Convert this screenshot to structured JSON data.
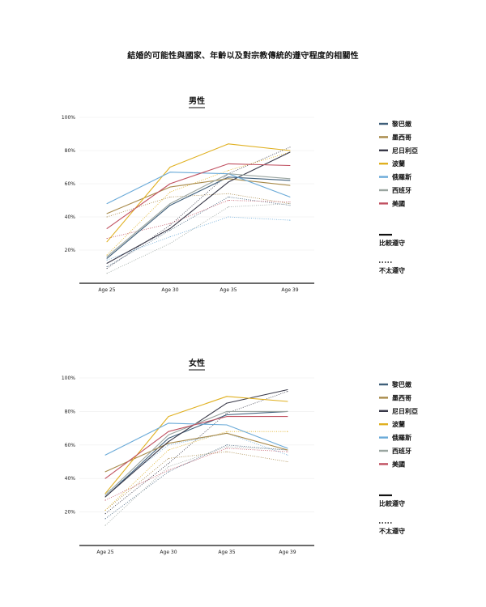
{
  "title": "結婚的可能性與國家、年齡以及對宗教傳統的遵守程度的相關性",
  "colors": {
    "lebanon": "#3f5f7a",
    "mexico": "#a88a4a",
    "nigeria": "#383848",
    "poland": "#e0b020",
    "russia": "#6aaad8",
    "spain": "#9aa5a0",
    "usa": "#c05060"
  },
  "legend": {
    "countries": [
      "黎巴嫩",
      "墨西哥",
      "尼日利亞",
      "波蘭",
      "俄羅斯",
      "西班牙",
      "美國"
    ],
    "observant": "比較遵守",
    "less_observant": "不太遵守"
  },
  "chart_data": [
    {
      "type": "line",
      "title": "男性",
      "x": [
        "Age 25",
        "Age 30",
        "Age 35",
        "Age 39"
      ],
      "yticks": [
        "20%",
        "40%",
        "60%",
        "80%",
        "100%"
      ],
      "ylim": [
        0,
        100
      ],
      "grid": true,
      "legend_position": "right",
      "series": [
        {
          "name": "黎巴嫩",
          "style": "solid",
          "values": [
            15,
            47,
            64,
            62
          ]
        },
        {
          "name": "墨西哥",
          "style": "solid",
          "values": [
            42,
            58,
            63,
            59
          ]
        },
        {
          "name": "尼日利亞",
          "style": "solid",
          "values": [
            12,
            33,
            61,
            79
          ]
        },
        {
          "name": "波蘭",
          "style": "solid",
          "values": [
            25,
            70,
            84,
            80
          ]
        },
        {
          "name": "俄羅斯",
          "style": "solid",
          "values": [
            48,
            67,
            66,
            52
          ]
        },
        {
          "name": "西班牙",
          "style": "solid",
          "values": [
            16,
            48,
            66,
            63
          ]
        },
        {
          "name": "美國",
          "style": "solid",
          "values": [
            33,
            60,
            72,
            71
          ]
        },
        {
          "name": "黎巴嫩",
          "style": "dotted",
          "values": [
            10,
            32,
            52,
            47
          ]
        },
        {
          "name": "墨西哥",
          "style": "dotted",
          "values": [
            40,
            52,
            54,
            48
          ]
        },
        {
          "name": "尼日利亞",
          "style": "dotted",
          "values": [
            9,
            35,
            66,
            82
          ]
        },
        {
          "name": "波蘭",
          "style": "dotted",
          "values": [
            17,
            55,
            68,
            79
          ]
        },
        {
          "name": "俄羅斯",
          "style": "dotted",
          "values": [
            14,
            28,
            40,
            38
          ]
        },
        {
          "name": "西班牙",
          "style": "dotted",
          "values": [
            6,
            24,
            46,
            48
          ]
        },
        {
          "name": "美國",
          "style": "dotted",
          "values": [
            27,
            36,
            50,
            49
          ]
        }
      ]
    },
    {
      "type": "line",
      "title": "女性",
      "x": [
        "Age 25",
        "Age 30",
        "Age 35",
        "Age 39"
      ],
      "yticks": [
        "20%",
        "40%",
        "60%",
        "80%",
        "100%"
      ],
      "ylim": [
        0,
        100
      ],
      "grid": true,
      "legend_position": "right",
      "series": [
        {
          "name": "黎巴嫩",
          "style": "solid",
          "values": [
            29,
            64,
            78,
            80
          ]
        },
        {
          "name": "墨西哥",
          "style": "solid",
          "values": [
            44,
            61,
            67,
            57
          ]
        },
        {
          "name": "尼日利亞",
          "style": "solid",
          "values": [
            29,
            62,
            85,
            93
          ]
        },
        {
          "name": "波蘭",
          "style": "solid",
          "values": [
            31,
            77,
            89,
            86
          ]
        },
        {
          "name": "俄羅斯",
          "style": "solid",
          "values": [
            54,
            73,
            72,
            58
          ]
        },
        {
          "name": "西班牙",
          "style": "solid",
          "values": [
            30,
            66,
            80,
            80
          ]
        },
        {
          "name": "美國",
          "style": "solid",
          "values": [
            40,
            68,
            77,
            77
          ]
        },
        {
          "name": "黎巴嫩",
          "style": "dotted",
          "values": [
            16,
            44,
            60,
            57
          ]
        },
        {
          "name": "墨西哥",
          "style": "dotted",
          "values": [
            21,
            52,
            56,
            50
          ]
        },
        {
          "name": "尼日利亞",
          "style": "dotted",
          "values": [
            19,
            49,
            79,
            92
          ]
        },
        {
          "name": "波蘭",
          "style": "dotted",
          "values": [
            21,
            57,
            68,
            68
          ]
        },
        {
          "name": "俄羅斯",
          "style": "dotted",
          "values": [
            31,
            60,
            67,
            54
          ]
        },
        {
          "name": "西班牙",
          "style": "dotted",
          "values": [
            12,
            47,
            59,
            57
          ]
        },
        {
          "name": "美國",
          "style": "dotted",
          "values": [
            27,
            45,
            58,
            56
          ]
        }
      ]
    }
  ]
}
